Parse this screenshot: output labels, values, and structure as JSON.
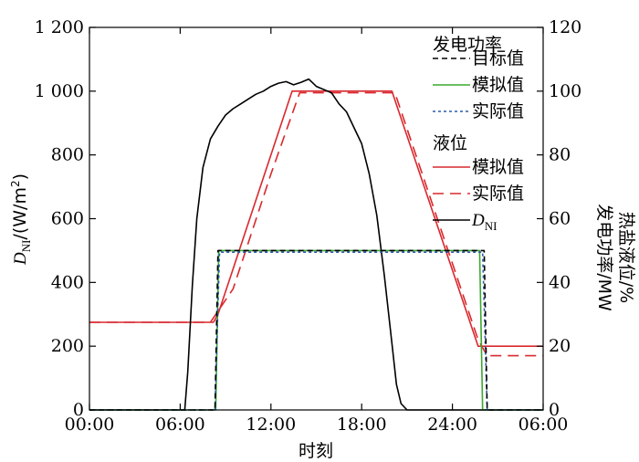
{
  "chart_data": {
    "type": "line",
    "xlabel": "时刻",
    "ylabel_left": {
      "main": "D",
      "sub": "NI",
      "rest": "/(W/m",
      "sup": "2",
      "close": ")"
    },
    "ylabel_right": {
      "line1": "发电功率/MW",
      "line2": "热盐液位/%"
    },
    "x_ticks": [
      "00:00",
      "06:00",
      "12:00",
      "18:00",
      "24:00",
      "06:00"
    ],
    "x_range_hours": [
      0,
      30
    ],
    "y_left_ticks": [
      "0",
      "200",
      "400",
      "600",
      "800",
      "1 000",
      "1 200"
    ],
    "y_left_range": [
      0,
      1200
    ],
    "y_right_ticks": [
      "0",
      "20",
      "40",
      "60",
      "80",
      "100",
      "120"
    ],
    "y_right_range": [
      0,
      120
    ],
    "legend": {
      "group1": "发电功率",
      "group2": "液位",
      "items": [
        {
          "key": "power_target",
          "label": "目标值",
          "color": "#000000",
          "dash": "6,4"
        },
        {
          "key": "power_sim",
          "label": "模拟值",
          "color": "#3aa82e",
          "dash": ""
        },
        {
          "key": "power_actual",
          "label": "实际值",
          "color": "#2a5aa8",
          "dash": "3,3"
        },
        {
          "key": "level_sim",
          "label": "模拟值",
          "color": "#d9282e",
          "dash": ""
        },
        {
          "key": "level_actual",
          "label": "实际值",
          "color": "#d9282e",
          "dash": "12,7"
        },
        {
          "key": "dni",
          "label_main": "D",
          "label_sub": "NI",
          "color": "#000000",
          "dash": ""
        }
      ]
    },
    "series": [
      {
        "key": "power_target",
        "axis": "right",
        "x": [
          0,
          8.3,
          8.5,
          26.1,
          26.3,
          30
        ],
        "y": [
          0,
          0,
          50,
          50,
          0,
          0
        ]
      },
      {
        "key": "power_sim",
        "axis": "right",
        "x": [
          0,
          8.35,
          8.55,
          25.8,
          26.0,
          30
        ],
        "y": [
          0,
          0,
          50,
          50,
          0,
          0
        ]
      },
      {
        "key": "power_actual",
        "axis": "right",
        "x": [
          0,
          8.3,
          8.6,
          26.0,
          26.3,
          30
        ],
        "y": [
          0,
          0,
          49.5,
          49.5,
          0,
          0
        ]
      },
      {
        "key": "level_sim",
        "axis": "right",
        "x": [
          0,
          8.2,
          8.5,
          13.4,
          20.0,
          25.7,
          30
        ],
        "y": [
          27.5,
          27.5,
          30,
          100,
          100,
          20,
          20
        ]
      },
      {
        "key": "level_actual",
        "axis": "right",
        "x": [
          0,
          8.0,
          9.5,
          12.0,
          13.9,
          20.2,
          25.7,
          26.3,
          30
        ],
        "y": [
          27.5,
          27.5,
          38,
          74,
          99.5,
          99.5,
          22,
          17,
          17
        ]
      },
      {
        "key": "dni",
        "axis": "left",
        "x": [
          0,
          6.3,
          6.5,
          6.8,
          7.1,
          7.5,
          8.0,
          8.5,
          9.0,
          9.5,
          10.0,
          10.5,
          11.0,
          11.5,
          12.0,
          12.5,
          13.0,
          13.5,
          14.0,
          14.5,
          15.0,
          15.5,
          16.0,
          16.5,
          17.0,
          17.5,
          18.0,
          18.5,
          19.0,
          19.5,
          20.0,
          20.3,
          20.6,
          21.0,
          30
        ],
        "y": [
          0,
          0,
          120,
          390,
          600,
          760,
          850,
          890,
          925,
          945,
          960,
          975,
          990,
          1000,
          1015,
          1025,
          1030,
          1020,
          1028,
          1038,
          1015,
          1005,
          995,
          960,
          935,
          885,
          835,
          740,
          610,
          420,
          210,
          80,
          20,
          0,
          0
        ]
      }
    ]
  }
}
